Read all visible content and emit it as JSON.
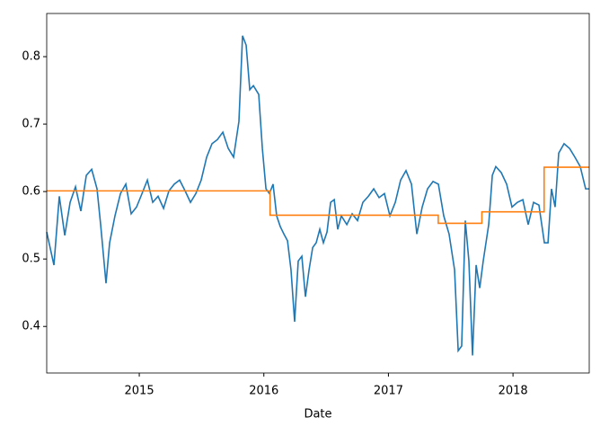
{
  "chart_data": {
    "type": "line",
    "x_label": "Date",
    "xlim": [
      2014.257,
      2018.612
    ],
    "xticks": [
      2015,
      2016,
      2017,
      2018
    ],
    "ylim": [
      0.331,
      0.864
    ],
    "yticks": [
      0.4,
      0.5,
      0.6,
      0.7,
      0.8
    ],
    "series": [
      {
        "color": "#1f77b4",
        "x": [
          2014.257,
          2014.315,
          2014.358,
          2014.402,
          2014.445,
          2014.488,
          2014.531,
          2014.575,
          2014.618,
          2014.661,
          2014.69,
          2014.733,
          2014.762,
          2014.805,
          2014.849,
          2014.892,
          2014.935,
          2014.978,
          2015.022,
          2015.065,
          2015.108,
          2015.151,
          2015.195,
          2015.238,
          2015.281,
          2015.324,
          2015.368,
          2015.411,
          2015.454,
          2015.497,
          2015.541,
          2015.584,
          2015.627,
          2015.671,
          2015.714,
          2015.757,
          2015.8,
          2015.829,
          2015.858,
          2015.887,
          2015.916,
          2015.959,
          2015.988,
          2016.017,
          2016.045,
          2016.074,
          2016.103,
          2016.132,
          2016.161,
          2016.19,
          2016.218,
          2016.247,
          2016.276,
          2016.305,
          2016.334,
          2016.363,
          2016.392,
          2016.42,
          2016.449,
          2016.478,
          2016.507,
          2016.536,
          2016.565,
          2016.593,
          2016.622,
          2016.666,
          2016.709,
          2016.752,
          2016.795,
          2016.839,
          2016.882,
          2016.925,
          2016.968,
          2017.012,
          2017.055,
          2017.098,
          2017.141,
          2017.185,
          2017.228,
          2017.271,
          2017.314,
          2017.358,
          2017.401,
          2017.444,
          2017.487,
          2017.531,
          2017.56,
          2017.588,
          2017.617,
          2017.646,
          2017.675,
          2017.704,
          2017.733,
          2017.761,
          2017.805,
          2017.834,
          2017.862,
          2017.906,
          2017.949,
          2017.992,
          2018.035,
          2018.079,
          2018.122,
          2018.165,
          2018.208,
          2018.252,
          2018.281,
          2018.309,
          2018.338,
          2018.367,
          2018.41,
          2018.454,
          2018.497,
          2018.54,
          2018.583,
          2018.612
        ],
        "values": [
          0.54,
          0.491,
          0.593,
          0.535,
          0.584,
          0.607,
          0.571,
          0.624,
          0.633,
          0.604,
          0.551,
          0.464,
          0.524,
          0.564,
          0.597,
          0.611,
          0.567,
          0.577,
          0.597,
          0.617,
          0.584,
          0.593,
          0.575,
          0.601,
          0.611,
          0.617,
          0.601,
          0.584,
          0.597,
          0.617,
          0.651,
          0.671,
          0.677,
          0.688,
          0.664,
          0.651,
          0.704,
          0.831,
          0.817,
          0.751,
          0.757,
          0.744,
          0.664,
          0.604,
          0.597,
          0.611,
          0.564,
          0.548,
          0.537,
          0.527,
          0.484,
          0.407,
          0.497,
          0.504,
          0.444,
          0.484,
          0.517,
          0.524,
          0.544,
          0.524,
          0.54,
          0.584,
          0.588,
          0.544,
          0.564,
          0.551,
          0.567,
          0.557,
          0.584,
          0.593,
          0.604,
          0.591,
          0.597,
          0.564,
          0.584,
          0.617,
          0.631,
          0.611,
          0.537,
          0.577,
          0.604,
          0.615,
          0.611,
          0.564,
          0.537,
          0.484,
          0.364,
          0.371,
          0.557,
          0.497,
          0.357,
          0.491,
          0.457,
          0.497,
          0.551,
          0.624,
          0.637,
          0.628,
          0.611,
          0.577,
          0.584,
          0.588,
          0.551,
          0.584,
          0.58,
          0.524,
          0.524,
          0.604,
          0.577,
          0.657,
          0.671,
          0.664,
          0.651,
          0.637,
          0.604,
          0.604
        ]
      },
      {
        "color": "#ff7f0e",
        "x": [
          2014.257,
          2016.05,
          2016.05,
          2017.4,
          2017.4,
          2017.75,
          2017.75,
          2018.25,
          2018.25,
          2018.612
        ],
        "values": [
          0.601,
          0.601,
          0.565,
          0.565,
          0.553,
          0.553,
          0.57,
          0.57,
          0.636,
          0.636
        ]
      }
    ]
  }
}
